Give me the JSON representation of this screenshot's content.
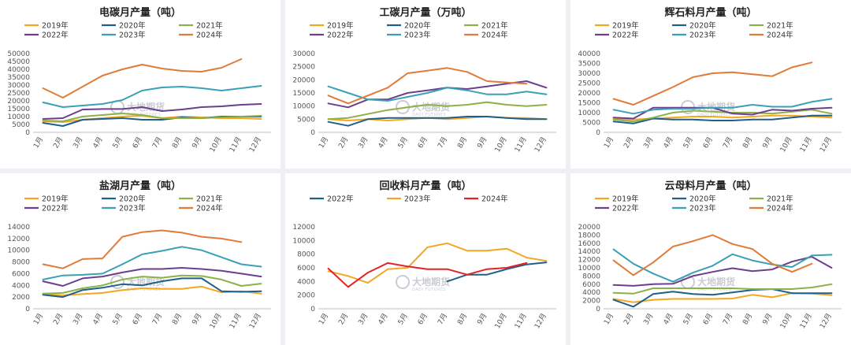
{
  "watermark": {
    "brand": "大地期货",
    "sub": "DADI FUTURES"
  },
  "series_colors": {
    "2019年": "#f5a623",
    "2020年": "#1f5f8b",
    "2021年": "#8db04a",
    "2022年": "#6b3f8e",
    "2023年": "#3aa0b5",
    "2024年": "#e07b39",
    "2024年_red": "#e32227"
  },
  "chart_data": [
    {
      "type": "line",
      "title": "电碳月产量（吨）",
      "categories": [
        "1月",
        "2月",
        "3月",
        "4月",
        "5月",
        "6月",
        "7月",
        "8月",
        "9月",
        "10月",
        "11月",
        "12月"
      ],
      "ylim": [
        0,
        50000
      ],
      "ystep": 5000,
      "legend_position": "top",
      "series": [
        {
          "name": "2019年",
          "color": "#f5a623",
          "values": [
            7000,
            6500,
            8000,
            9000,
            10000,
            10500,
            9000,
            10000,
            9500,
            9000,
            9000,
            8500
          ]
        },
        {
          "name": "2020年",
          "color": "#1f5f8b",
          "values": [
            6000,
            4000,
            8000,
            8500,
            9000,
            8000,
            8000,
            9500,
            9000,
            10000,
            10000,
            10000
          ]
        },
        {
          "name": "2021年",
          "color": "#8db04a",
          "values": [
            7500,
            7000,
            10000,
            11000,
            12000,
            11000,
            9000,
            9000,
            9000,
            9500,
            10000,
            10500
          ]
        },
        {
          "name": "2022年",
          "color": "#6b3f8e",
          "values": [
            8500,
            9000,
            14500,
            14800,
            14800,
            16000,
            13500,
            14500,
            16000,
            16500,
            17500,
            18000
          ]
        },
        {
          "name": "2023年",
          "color": "#3aa0b5",
          "values": [
            19000,
            16000,
            17000,
            18000,
            20500,
            26500,
            28500,
            29000,
            28000,
            26500,
            28000,
            29500
          ]
        },
        {
          "name": "2024年",
          "color": "#e07b39",
          "values": [
            28000,
            22000,
            29000,
            36000,
            40000,
            43000,
            40500,
            39000,
            38500,
            41000,
            46500,
            null
          ]
        }
      ]
    },
    {
      "type": "line",
      "title": "工碳月产量（万吨）",
      "categories": [
        "1月",
        "2月",
        "3月",
        "4月",
        "5月",
        "6月",
        "7月",
        "8月",
        "9月",
        "10月",
        "11月",
        "12月"
      ],
      "ylim": [
        0,
        30000
      ],
      "ystep": 5000,
      "legend_position": "top",
      "series": [
        {
          "name": "2019年",
          "color": "#f5a623",
          "values": [
            5000,
            4500,
            5000,
            4500,
            5000,
            5500,
            5000,
            5500,
            6000,
            5500,
            5500,
            5000
          ]
        },
        {
          "name": "2020年",
          "color": "#1f5f8b",
          "values": [
            4000,
            2500,
            5000,
            5500,
            5500,
            5500,
            5500,
            6000,
            6000,
            5500,
            5000,
            5000
          ]
        },
        {
          "name": "2021年",
          "color": "#8db04a",
          "values": [
            5000,
            5500,
            7000,
            8500,
            9500,
            10500,
            10000,
            10500,
            11500,
            10500,
            10000,
            10500
          ]
        },
        {
          "name": "2022年",
          "color": "#6b3f8e",
          "values": [
            11000,
            9500,
            12500,
            12500,
            15000,
            16000,
            17000,
            16500,
            17500,
            18500,
            19500,
            17000
          ]
        },
        {
          "name": "2023年",
          "color": "#3aa0b5",
          "values": [
            17500,
            15000,
            12500,
            12000,
            13500,
            15000,
            17000,
            16000,
            14500,
            14500,
            15500,
            14500
          ]
        },
        {
          "name": "2024年",
          "color": "#e07b39",
          "values": [
            14000,
            11000,
            14000,
            17000,
            22500,
            23500,
            24500,
            23000,
            19500,
            19000,
            18500,
            null
          ]
        }
      ]
    },
    {
      "type": "line",
      "title": "辉石料月产量（吨）",
      "categories": [
        "1月",
        "2月",
        "3月",
        "4月",
        "5月",
        "6月",
        "7月",
        "8月",
        "9月",
        "10月",
        "11月",
        "12月"
      ],
      "ylim": [
        0,
        40000
      ],
      "ystep": 5000,
      "legend_position": "top",
      "series": [
        {
          "name": "2019年",
          "color": "#f5a623",
          "values": [
            7000,
            6500,
            7000,
            7500,
            8000,
            8000,
            7500,
            8000,
            8500,
            8500,
            8000,
            7500
          ]
        },
        {
          "name": "2020年",
          "color": "#1f5f8b",
          "values": [
            5500,
            4500,
            7000,
            6500,
            6500,
            6000,
            6000,
            6500,
            6500,
            7500,
            8500,
            8500
          ]
        },
        {
          "name": "2021年",
          "color": "#8db04a",
          "values": [
            6500,
            5500,
            7500,
            10000,
            11000,
            10500,
            10000,
            10000,
            9500,
            10500,
            11500,
            9500
          ]
        },
        {
          "name": "2022年",
          "color": "#6b3f8e",
          "values": [
            7500,
            7000,
            12500,
            12500,
            12500,
            12500,
            9500,
            9000,
            11500,
            11000,
            12000,
            12500
          ]
        },
        {
          "name": "2023年",
          "color": "#3aa0b5",
          "values": [
            11500,
            9500,
            11500,
            12000,
            12000,
            12500,
            12500,
            14000,
            13000,
            13000,
            15500,
            17000
          ]
        },
        {
          "name": "2024年",
          "color": "#e07b39",
          "values": [
            17000,
            14000,
            18500,
            23000,
            28000,
            30000,
            30500,
            29500,
            28500,
            33000,
            35500,
            null
          ]
        }
      ]
    },
    {
      "type": "line",
      "title": "盐湖月产量（吨）",
      "categories": [
        "1月",
        "2月",
        "3月",
        "4月",
        "5月",
        "6月",
        "7月",
        "8月",
        "9月",
        "10月",
        "11月",
        "12月"
      ],
      "ylim": [
        0,
        14000
      ],
      "ystep": 2000,
      "legend_position": "top",
      "series": [
        {
          "name": "2019年",
          "color": "#f5a623",
          "values": [
            2500,
            2300,
            2500,
            2700,
            3200,
            3500,
            3400,
            3400,
            3800,
            2800,
            3000,
            2600
          ]
        },
        {
          "name": "2020年",
          "color": "#1f5f8b",
          "values": [
            2400,
            2000,
            3200,
            3600,
            4200,
            4000,
            4700,
            5200,
            5200,
            3000,
            2900,
            3000
          ]
        },
        {
          "name": "2021年",
          "color": "#8db04a",
          "values": [
            2600,
            2700,
            3500,
            4000,
            5000,
            5500,
            5300,
            5700,
            5600,
            5000,
            3900,
            4300
          ]
        },
        {
          "name": "2022年",
          "color": "#6b3f8e",
          "values": [
            4700,
            3900,
            5200,
            5500,
            6200,
            6800,
            6800,
            7000,
            6800,
            6500,
            6000,
            5500
          ]
        },
        {
          "name": "2023年",
          "color": "#3aa0b5",
          "values": [
            5000,
            5700,
            5800,
            6000,
            7600,
            9300,
            9900,
            10600,
            10000,
            8800,
            7600,
            7200
          ]
        },
        {
          "name": "2024年",
          "color": "#e07b39",
          "values": [
            7600,
            6900,
            8500,
            8600,
            12300,
            13100,
            13400,
            13000,
            12300,
            12000,
            11400,
            null
          ]
        }
      ]
    },
    {
      "type": "line",
      "title": "回收料月产量（吨）",
      "categories": [
        "1月",
        "2月",
        "3月",
        "4月",
        "5月",
        "6月",
        "7月",
        "8月",
        "9月",
        "10月",
        "11月",
        "12月"
      ],
      "ylim": [
        0,
        12000
      ],
      "ystep": 2000,
      "legend_position": "top",
      "series": [
        {
          "name": "2022年",
          "color": "#1f5f8b",
          "values": [
            null,
            null,
            null,
            null,
            null,
            null,
            4000,
            5000,
            5000,
            5800,
            6500,
            6800
          ]
        },
        {
          "name": "2023年",
          "color": "#f5a623",
          "values": [
            5500,
            4800,
            3800,
            5800,
            6000,
            9000,
            9600,
            8500,
            8500,
            8800,
            7500,
            7000
          ]
        },
        {
          "name": "2024年",
          "color": "#e32227",
          "values": [
            5900,
            3200,
            5300,
            6700,
            6200,
            5800,
            5800,
            5000,
            5800,
            6000,
            6700,
            null
          ]
        }
      ]
    },
    {
      "type": "line",
      "title": "云母料月产量（吨）",
      "categories": [
        "1月",
        "2月",
        "3月",
        "4月",
        "5月",
        "6月",
        "7月",
        "8月",
        "9月",
        "10月",
        "11月",
        "12月"
      ],
      "ylim": [
        0,
        20000
      ],
      "ystep": 2000,
      "legend_position": "top",
      "series": [
        {
          "name": "2019年",
          "color": "#f5a623",
          "values": [
            2400,
            1600,
            2200,
            2400,
            2400,
            2400,
            2500,
            3400,
            2800,
            3800,
            3700,
            3300
          ]
        },
        {
          "name": "2020年",
          "color": "#1f5f8b",
          "values": [
            2200,
            500,
            3600,
            4200,
            3600,
            3400,
            4000,
            4600,
            4800,
            3800,
            3800,
            3800
          ]
        },
        {
          "name": "2021年",
          "color": "#8db04a",
          "values": [
            3900,
            3700,
            5000,
            5000,
            5000,
            5000,
            5000,
            4800,
            4800,
            4800,
            5200,
            6000
          ]
        },
        {
          "name": "2022年",
          "color": "#6b3f8e",
          "values": [
            5800,
            5600,
            6000,
            6100,
            8000,
            9000,
            9900,
            9200,
            9600,
            11500,
            12700,
            10000
          ]
        },
        {
          "name": "2023年",
          "color": "#3aa0b5",
          "values": [
            14500,
            11000,
            8600,
            6600,
            8800,
            10500,
            13300,
            11800,
            10800,
            10200,
            13000,
            13200
          ]
        },
        {
          "name": "2024年",
          "color": "#e07b39",
          "values": [
            11800,
            8200,
            11300,
            15200,
            16500,
            18000,
            15800,
            14600,
            11000,
            9000,
            11000,
            null
          ]
        }
      ]
    }
  ]
}
